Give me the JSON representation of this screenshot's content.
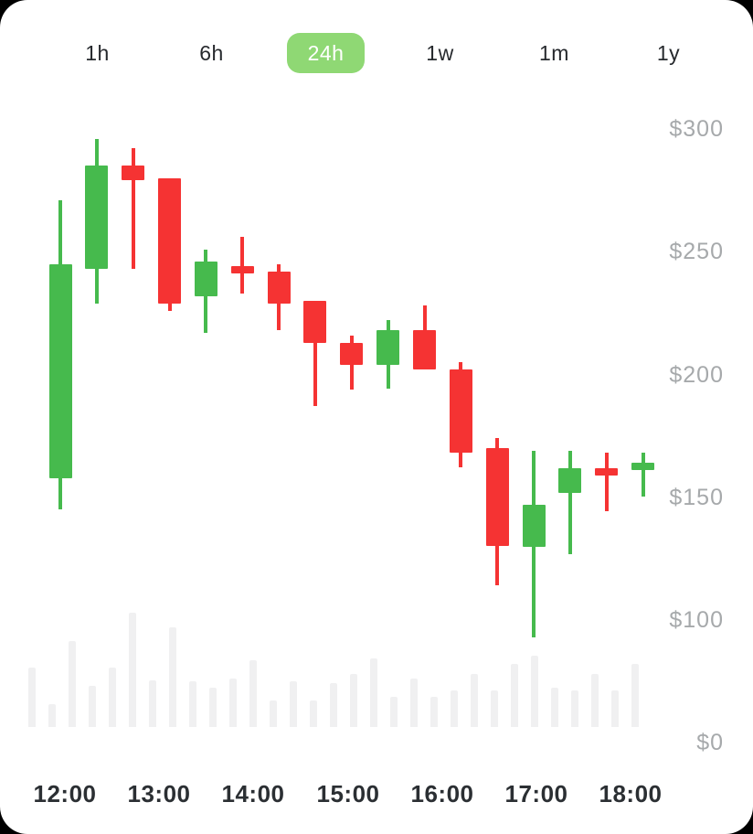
{
  "tabs": {
    "active": "24h",
    "items": [
      {
        "label": "1h"
      },
      {
        "label": "6h"
      },
      {
        "label": "24h"
      },
      {
        "label": "1w"
      },
      {
        "label": "1m"
      },
      {
        "label": "1y"
      }
    ]
  },
  "colors": {
    "up": "#46BA4D",
    "down": "#F53333",
    "active_tab_bg": "#8FD874",
    "active_tab_text": "#FFFFFF",
    "tab_text": "#26292D",
    "y_axis_text": "#A6A9AB",
    "x_axis_text": "#2B2F33",
    "volume_bar": "#F0F0F1",
    "card_bg": "#FFFFFF",
    "page_bg": "#000000"
  },
  "chart_data": {
    "type": "candlestick",
    "title": "",
    "x_labels": [
      "12:00",
      "13:00",
      "14:00",
      "15:00",
      "16:00",
      "17:00",
      "18:00"
    ],
    "y_labels": [
      "$300",
      "$250",
      "$200",
      "$150",
      "$100",
      "$0"
    ],
    "y_axis": {
      "unit": "$",
      "labeled_ticks": [
        300,
        250,
        200,
        150,
        100,
        0
      ],
      "position": "right",
      "gridlines": false
    },
    "legend": "none",
    "candles": [
      {
        "open": 158,
        "high": 271,
        "low": 145,
        "close": 245
      },
      {
        "open": 243,
        "high": 296,
        "low": 229,
        "close": 285
      },
      {
        "open": 285,
        "high": 292,
        "low": 243,
        "close": 279
      },
      {
        "open": 280,
        "high": 280,
        "low": 226,
        "close": 229
      },
      {
        "open": 232,
        "high": 251,
        "low": 217,
        "close": 246
      },
      {
        "open": 244,
        "high": 256,
        "low": 233,
        "close": 241
      },
      {
        "open": 242,
        "high": 245,
        "low": 218,
        "close": 229
      },
      {
        "open": 230,
        "high": 230,
        "low": 187,
        "close": 213
      },
      {
        "open": 213,
        "high": 216,
        "low": 194,
        "close": 204
      },
      {
        "open": 204,
        "high": 222,
        "low": 194,
        "close": 218
      },
      {
        "open": 218,
        "high": 228,
        "low": 202,
        "close": 202
      },
      {
        "open": 202,
        "high": 205,
        "low": 162,
        "close": 168
      },
      {
        "open": 170,
        "high": 174,
        "low": 114,
        "close": 130
      },
      {
        "open": 130,
        "high": 169,
        "low": 93,
        "close": 147
      },
      {
        "open": 152,
        "high": 169,
        "low": 127,
        "close": 162
      },
      {
        "open": 162,
        "high": 168,
        "low": 144,
        "close": 159
      },
      {
        "open": 161,
        "high": 168,
        "low": 150,
        "close": 164
      }
    ],
    "volume_relative": [
      52,
      20,
      75,
      36,
      52,
      100,
      41,
      87,
      40,
      34,
      42,
      58,
      23,
      40,
      23,
      38,
      46,
      60,
      26,
      42,
      26,
      32,
      46,
      32,
      55,
      62,
      34,
      32,
      46,
      32,
      55
    ]
  }
}
